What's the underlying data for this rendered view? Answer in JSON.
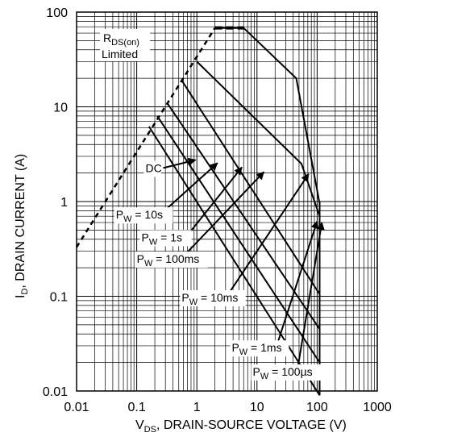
{
  "chart_data": {
    "type": "line",
    "x_scale": "log",
    "y_scale": "log",
    "xlim": [
      0.01,
      1000
    ],
    "ylim": [
      0.01,
      100
    ],
    "grid": true,
    "x_ticks": [
      "0.01",
      "0.1",
      "1",
      "10",
      "100",
      "1000"
    ],
    "y_ticks": [
      "100",
      "10",
      "1",
      "0.1",
      "0.01"
    ],
    "xlabel": {
      "main": "V",
      "sub": "DS",
      "rest": ", DRAIN-SOURCE VOLTAGE (V)"
    },
    "ylabel": {
      "main": "I",
      "sub": "D",
      "rest": ", DRAIN CURRENT (A)"
    },
    "rds_label": {
      "main": "R",
      "sub": "DS(on)",
      "line2": "Limited"
    },
    "rds_limit": [
      [
        0.01,
        0.33
      ],
      [
        2.0,
        68.0
      ]
    ],
    "top_limit": [
      [
        2.0,
        68.0
      ],
      [
        6.0,
        68.0
      ]
    ],
    "series": [
      {
        "name": "DC",
        "points": [
          [
            0.16,
            6.2
          ],
          [
            110,
            0.009
          ]
        ]
      },
      {
        "name": "10s",
        "points": [
          [
            0.22,
            8.0
          ],
          [
            110,
            0.02
          ]
        ]
      },
      {
        "name": "1s",
        "points": [
          [
            0.32,
            11.0
          ],
          [
            110,
            0.045
          ]
        ]
      },
      {
        "name": "100ms",
        "points": [
          [
            0.56,
            19.0
          ],
          [
            110,
            0.105
          ]
        ]
      },
      {
        "name": "10ms",
        "points": [
          [
            1.0,
            30.0
          ],
          [
            55,
            2.5
          ],
          [
            110,
            0.7
          ]
        ]
      },
      {
        "name": "1ms",
        "points": [
          [
            2.0,
            68.0
          ],
          [
            6.0,
            68.0
          ],
          [
            45,
            20.0
          ],
          [
            110,
            0.95
          ]
        ]
      },
      {
        "name": "voltage_limit",
        "points": [
          [
            110,
            1.0
          ],
          [
            110,
            0.009
          ]
        ]
      }
    ],
    "labels": [
      {
        "text": "DC",
        "main": "DC",
        "sub": "",
        "rest": "",
        "at": [
          0.14,
          2.05
        ],
        "arrow_to": [
          0.95,
          2.75
        ]
      },
      {
        "text": "PW = 10s",
        "main": "P",
        "sub": "W",
        "rest": " = 10s",
        "at": [
          0.045,
          0.66
        ],
        "arrow_to": [
          2.2,
          2.55
        ]
      },
      {
        "text": "PW = 1s",
        "main": "P",
        "sub": "W",
        "rest": " = 1s",
        "at": [
          0.12,
          0.38
        ],
        "arrow_to": [
          5.6,
          2.3
        ]
      },
      {
        "text": "PW = 100ms",
        "main": "P",
        "sub": "W",
        "rest": " = 100ms",
        "at": [
          0.1,
          0.225
        ],
        "arrow_to": [
          13.0,
          2.05
        ]
      },
      {
        "text": "PW = 10ms",
        "main": "P",
        "sub": "W",
        "rest": " = 10ms",
        "at": [
          0.56,
          0.088
        ],
        "arrow_to": [
          72.0,
          1.95
        ]
      },
      {
        "text": "PW = 1ms",
        "main": "P",
        "sub": "W",
        "rest": " = 1ms",
        "at": [
          3.8,
          0.026
        ],
        "arrow_to": [
          100.0,
          0.62
        ]
      },
      {
        "text": "PW = 100µs",
        "main": "P",
        "sub": "W",
        "rest": " = 100µs",
        "at": [
          8.5,
          0.0145
        ],
        "arrow_to": [
          120.0,
          0.6
        ]
      }
    ]
  }
}
